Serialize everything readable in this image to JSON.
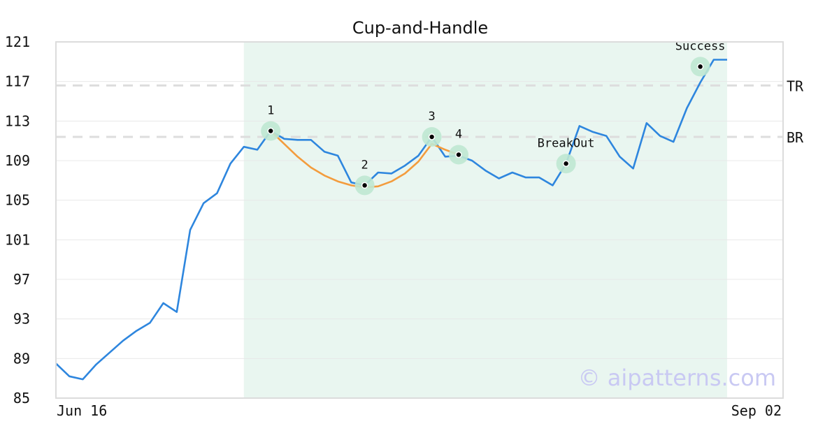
{
  "chart_data": {
    "type": "line",
    "title": "Cup-and-Handle",
    "x_tick_labels": [
      "Jun 16",
      "Sep 02"
    ],
    "ylim": [
      85,
      121
    ],
    "yticks": [
      85,
      89,
      93,
      97,
      101,
      105,
      109,
      113,
      117,
      121
    ],
    "grid": "horizontal",
    "series": [
      {
        "values": [
          88.5,
          87.2,
          86.9,
          88.4,
          89.6,
          90.8,
          91.8,
          92.6,
          94.6,
          93.7,
          102.0,
          104.7,
          105.7,
          108.7,
          110.4,
          110.1,
          112.0,
          111.2,
          111.1,
          111.1,
          109.9,
          109.5,
          106.8,
          106.5,
          107.8,
          107.7,
          108.5,
          109.5,
          111.4,
          109.4,
          109.5,
          109.0,
          108.0,
          107.2,
          107.8,
          107.3,
          107.3,
          106.5,
          108.7,
          112.5,
          111.9,
          111.5,
          109.4,
          108.2,
          112.8,
          111.5,
          110.9,
          114.3,
          116.9,
          119.2,
          119.2
        ],
        "color": "#2e86de"
      }
    ],
    "cup_curve": {
      "values": [
        112.0,
        110.7,
        109.4,
        108.3,
        107.5,
        106.9,
        106.5,
        106.3,
        106.4,
        106.9,
        107.7,
        108.9,
        110.7,
        110.1,
        109.6
      ],
      "start_index": 16,
      "color": "#f39c3d"
    },
    "shaded_region": {
      "from_index": 14,
      "to_index": 50,
      "color": "#e9f6f0"
    },
    "horizontal_lines": [
      {
        "label": "TR",
        "value": 116.6,
        "color": "#dddddd"
      },
      {
        "label": "BR",
        "value": 111.4,
        "color": "#dddddd"
      }
    ],
    "annotations": [
      {
        "label": "1",
        "x_index": 16,
        "y": 112.0
      },
      {
        "label": "2",
        "x_index": 23,
        "y": 106.5
      },
      {
        "label": "3",
        "x_index": 28,
        "y": 111.4
      },
      {
        "label": "4",
        "x_index": 30,
        "y": 109.6
      },
      {
        "label": "BreakOut",
        "x_index": 38,
        "y": 108.7
      },
      {
        "label": "Success",
        "x_index": 48,
        "y": 118.5
      }
    ],
    "watermark": "© aipatterns.com"
  }
}
